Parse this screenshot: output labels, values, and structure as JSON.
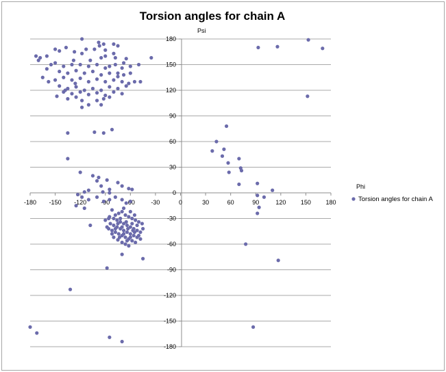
{
  "chart_data": {
    "type": "scatter",
    "title": "Torsion angles for chain A",
    "xlabel": "Phi",
    "ylabel": "Psi",
    "xlim": [
      -180,
      180
    ],
    "ylim": [
      -180,
      180
    ],
    "x_ticks": [
      -180,
      -150,
      -120,
      -90,
      -60,
      -30,
      0,
      30,
      60,
      90,
      120,
      150,
      180
    ],
    "y_ticks": [
      -180,
      -150,
      -120,
      -90,
      -60,
      -30,
      0,
      30,
      60,
      90,
      120,
      150,
      180
    ],
    "grid": "horizontal",
    "legend_position": "right",
    "series": [
      {
        "name": "Torsion angles for chain A",
        "color": "#6b6bab",
        "points": [
          [
            -118,
            180
          ],
          [
            -98,
            176
          ],
          [
            -92,
            174
          ],
          [
            -80,
            174
          ],
          [
            -75,
            172
          ],
          [
            -97,
            172
          ],
          [
            -103,
            168
          ],
          [
            -90,
            167
          ],
          [
            -137,
            170
          ],
          [
            -113,
            168
          ],
          [
            -150,
            168
          ],
          [
            -145,
            166
          ],
          [
            -127,
            165
          ],
          [
            -118,
            163
          ],
          [
            -173,
            160
          ],
          [
            -168,
            158
          ],
          [
            -160,
            160
          ],
          [
            -170,
            155
          ],
          [
            -90,
            160
          ],
          [
            -80,
            163
          ],
          [
            -78,
            158
          ],
          [
            -65,
            157
          ],
          [
            -68,
            152
          ],
          [
            -35,
            158
          ],
          [
            -155,
            150
          ],
          [
            -150,
            152
          ],
          [
            -140,
            148
          ],
          [
            -130,
            150
          ],
          [
            -120,
            150
          ],
          [
            -110,
            148
          ],
          [
            -100,
            150
          ],
          [
            -90,
            146
          ],
          [
            -85,
            148
          ],
          [
            -78,
            150
          ],
          [
            -70,
            146
          ],
          [
            -60,
            148
          ],
          [
            -50,
            150
          ],
          [
            -128,
            155
          ],
          [
            -108,
            155
          ],
          [
            -95,
            158
          ],
          [
            -75,
            140
          ],
          [
            -160,
            145
          ],
          [
            -145,
            142
          ],
          [
            -135,
            140
          ],
          [
            -125,
            143
          ],
          [
            -115,
            140
          ],
          [
            -105,
            142
          ],
          [
            -95,
            138
          ],
          [
            -85,
            140
          ],
          [
            -75,
            136
          ],
          [
            -68,
            138
          ],
          [
            -60,
            140
          ],
          [
            -140,
            135
          ],
          [
            -130,
            132
          ],
          [
            -120,
            134
          ],
          [
            -110,
            130
          ],
          [
            -100,
            133
          ],
          [
            -90,
            130
          ],
          [
            -80,
            132
          ],
          [
            -70,
            130
          ],
          [
            -62,
            128
          ],
          [
            -55,
            130
          ],
          [
            -48,
            130
          ],
          [
            -150,
            132
          ],
          [
            -158,
            130
          ],
          [
            -165,
            135
          ],
          [
            -145,
            125
          ],
          [
            -135,
            122
          ],
          [
            -125,
            124
          ],
          [
            -115,
            120
          ],
          [
            -105,
            122
          ],
          [
            -95,
            120
          ],
          [
            -85,
            124
          ],
          [
            -75,
            122
          ],
          [
            -65,
            125
          ],
          [
            -140,
            118
          ],
          [
            -130,
            116
          ],
          [
            -120,
            118
          ],
          [
            -110,
            115
          ],
          [
            -100,
            117
          ],
          [
            -90,
            114
          ],
          [
            -80,
            118
          ],
          [
            -70,
            116
          ],
          [
            -138,
            120
          ],
          [
            -126,
            128
          ],
          [
            -135,
            110
          ],
          [
            -125,
            112
          ],
          [
            -118,
            108
          ],
          [
            -100,
            108
          ],
          [
            -92,
            110
          ],
          [
            -85,
            112
          ],
          [
            -110,
            103
          ],
          [
            -118,
            100
          ],
          [
            -95,
            103
          ],
          [
            -148,
            113
          ],
          [
            -135,
            70
          ],
          [
            -103,
            71
          ],
          [
            -92,
            70
          ],
          [
            -82,
            74
          ],
          [
            -135,
            40
          ],
          [
            -120,
            24
          ],
          [
            -105,
            20
          ],
          [
            -98,
            18
          ],
          [
            -88,
            15
          ],
          [
            -100,
            14
          ],
          [
            -95,
            8
          ],
          [
            -85,
            4
          ],
          [
            -75,
            12
          ],
          [
            -70,
            8
          ],
          [
            -62,
            5
          ],
          [
            -58,
            4
          ],
          [
            -110,
            3
          ],
          [
            -115,
            1
          ],
          [
            -93,
            1
          ],
          [
            -85,
            0
          ],
          [
            -123,
            -2
          ],
          [
            -118,
            -5
          ],
          [
            -110,
            -8
          ],
          [
            -100,
            -5
          ],
          [
            -92,
            -10
          ],
          [
            -85,
            -8
          ],
          [
            -78,
            -5
          ],
          [
            -70,
            -8
          ],
          [
            -65,
            -12
          ],
          [
            -60,
            -10
          ],
          [
            -125,
            -15
          ],
          [
            -115,
            -18
          ],
          [
            -108,
            -38
          ],
          [
            -88,
            -88
          ],
          [
            -45,
            -77
          ],
          [
            -70,
            -72
          ],
          [
            -132,
            -113
          ],
          [
            -172,
            -164
          ],
          [
            -85,
            -169
          ],
          [
            -70,
            -174
          ],
          [
            -185,
            -157
          ],
          [
            -85,
            -28
          ],
          [
            -80,
            -30
          ],
          [
            -76,
            -32
          ],
          [
            -72,
            -34
          ],
          [
            -68,
            -36
          ],
          [
            -64,
            -38
          ],
          [
            -60,
            -40
          ],
          [
            -56,
            -42
          ],
          [
            -52,
            -44
          ],
          [
            -48,
            -46
          ],
          [
            -84,
            -36
          ],
          [
            -80,
            -38
          ],
          [
            -76,
            -40
          ],
          [
            -72,
            -42
          ],
          [
            -68,
            -44
          ],
          [
            -64,
            -46
          ],
          [
            -60,
            -48
          ],
          [
            -56,
            -50
          ],
          [
            -52,
            -52
          ],
          [
            -82,
            -44
          ],
          [
            -78,
            -46
          ],
          [
            -74,
            -48
          ],
          [
            -70,
            -50
          ],
          [
            -66,
            -52
          ],
          [
            -62,
            -54
          ],
          [
            -58,
            -56
          ],
          [
            -54,
            -58
          ],
          [
            -86,
            -30
          ],
          [
            -78,
            -26
          ],
          [
            -74,
            -24
          ],
          [
            -70,
            -22
          ],
          [
            -66,
            -26
          ],
          [
            -62,
            -28
          ],
          [
            -58,
            -30
          ],
          [
            -54,
            -32
          ],
          [
            -50,
            -34
          ],
          [
            -46,
            -36
          ],
          [
            -70,
            -58
          ],
          [
            -66,
            -60
          ],
          [
            -62,
            -62
          ],
          [
            -75,
            -55
          ],
          [
            -80,
            -52
          ],
          [
            -48,
            -54
          ],
          [
            -50,
            -50
          ],
          [
            -45,
            -42
          ],
          [
            -88,
            -40
          ],
          [
            -90,
            -32
          ],
          [
            -82,
            -20
          ],
          [
            -68,
            -18
          ],
          [
            -60,
            -22
          ],
          [
            -55,
            -26
          ],
          [
            -72,
            -30
          ],
          [
            -65,
            -34
          ],
          [
            -58,
            -36
          ],
          [
            -75,
            -36
          ],
          [
            -70,
            -40
          ],
          [
            -63,
            -42
          ],
          [
            -57,
            -44
          ],
          [
            -52,
            -38
          ],
          [
            -78,
            -42
          ],
          [
            -68,
            -48
          ],
          [
            -60,
            -52
          ],
          [
            -55,
            -46
          ],
          [
            -73,
            -52
          ],
          [
            -64,
            -56
          ],
          [
            -82,
            -48
          ],
          [
            -86,
            -42
          ],
          [
            93,
            170
          ],
          [
            116,
            171
          ],
          [
            153,
            179
          ],
          [
            170,
            169
          ],
          [
            152,
            113
          ],
          [
            55,
            78
          ],
          [
            43,
            60
          ],
          [
            38,
            49
          ],
          [
            52,
            51
          ],
          [
            50,
            43
          ],
          [
            57,
            35
          ],
          [
            70,
            40
          ],
          [
            72,
            29
          ],
          [
            73,
            26
          ],
          [
            58,
            24
          ],
          [
            70,
            10
          ],
          [
            92,
            11
          ],
          [
            110,
            3
          ],
          [
            100,
            -5
          ],
          [
            92,
            -3
          ],
          [
            94,
            -17
          ],
          [
            92,
            -24
          ],
          [
            78,
            -60
          ],
          [
            117,
            -79
          ],
          [
            87,
            -157
          ]
        ]
      }
    ]
  }
}
